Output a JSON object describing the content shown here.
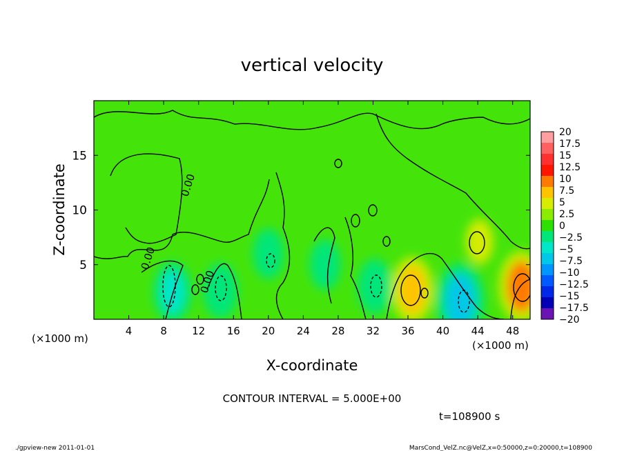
{
  "chart_data": {
    "type": "heatmap",
    "title": "vertical velocity",
    "xlabel": "X-coordinate",
    "ylabel": "Z-coordinate",
    "x_units": "(×1000 m)",
    "y_units": "(×1000 m)",
    "x_range": [
      0,
      50
    ],
    "y_range": [
      0,
      20
    ],
    "x_ticks": [
      "4",
      "8",
      "12",
      "16",
      "20",
      "24",
      "28",
      "32",
      "36",
      "40",
      "44",
      "48"
    ],
    "y_ticks": [
      "5",
      "10",
      "15"
    ],
    "colorbar": {
      "levels": [
        "20",
        "17.5",
        "15",
        "12.5",
        "10",
        "7.5",
        "5",
        "2.5",
        "0",
        "−2.5",
        "−5",
        "−7.5",
        "−10",
        "−12.5",
        "−15",
        "−17.5",
        "−20"
      ],
      "colors": [
        "#ff9f9f",
        "#ff6060",
        "#ff3030",
        "#ff1500",
        "#ff7a00",
        "#ffc400",
        "#d6ec00",
        "#8cec00",
        "#2ee000",
        "#00e67a",
        "#00e6c8",
        "#00c8e6",
        "#0096ff",
        "#005aff",
        "#0028e6",
        "#0000b4",
        "#6a14b4"
      ]
    },
    "contour_levels": [
      "0.00"
    ],
    "features": [
      {
        "x": 36.5,
        "z": 2.7,
        "value": 7
      },
      {
        "x": 49.0,
        "z": 3.0,
        "value": 8
      },
      {
        "x": 42.0,
        "z": 1.7,
        "value": -9
      },
      {
        "x": 9.0,
        "z": 2.5,
        "value": -6
      },
      {
        "x": 14.5,
        "z": 2.6,
        "value": -5
      },
      {
        "x": 32.2,
        "z": 3.0,
        "value": -5
      },
      {
        "x": 20.0,
        "z": 6.0,
        "value": -4
      },
      {
        "x": 26.5,
        "z": 5.0,
        "value": -4
      },
      {
        "x": 44.2,
        "z": 7.1,
        "value": 3
      }
    ],
    "contour_interval": "CONTOUR INTERVAL = 5.000E+00",
    "time": "t=108900 s"
  },
  "footer": {
    "left": "./gpview-new   2011-01-01",
    "right": "MarsCond_VelZ.nc@VelZ,x=0:50000,z=0:20000,t=108900"
  }
}
